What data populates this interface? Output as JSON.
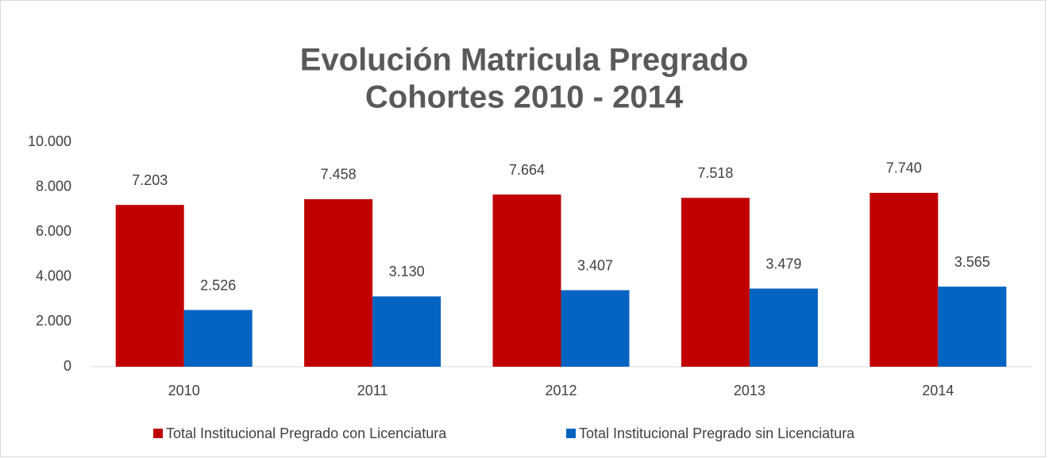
{
  "chart_data": {
    "type": "bar",
    "title": [
      "Evolución Matricula Pregrado",
      "Cohortes 2010 - 2014"
    ],
    "categories": [
      "2010",
      "2011",
      "2012",
      "2013",
      "2014"
    ],
    "series": [
      {
        "name": "Total Institucional Pregrado con Licenciatura",
        "color": "#c00000",
        "values": [
          7203,
          7458,
          7664,
          7518,
          7740
        ],
        "value_labels": [
          "7.203",
          "7.458",
          "7.664",
          "7.518",
          "7.740"
        ]
      },
      {
        "name": "Total Institucional Pregrado sin Licenciatura",
        "color": "#0563c1",
        "values": [
          2526,
          3130,
          3407,
          3479,
          3565
        ],
        "value_labels": [
          "2.526",
          "3.130",
          "3.407",
          "3.479",
          "3.565"
        ]
      }
    ],
    "ylim": [
      0,
      10000
    ],
    "yticks": [
      0,
      {
        "value": 2000,
        "label": "2.000"
      },
      {
        "value": 4000,
        "label": "4.000"
      },
      {
        "value": 6000,
        "label": "6.000"
      },
      {
        "value": 8000,
        "label": "8.000"
      },
      {
        "value": 10000,
        "label": "10.000"
      }
    ],
    "grid": false,
    "legend": "bottom"
  }
}
